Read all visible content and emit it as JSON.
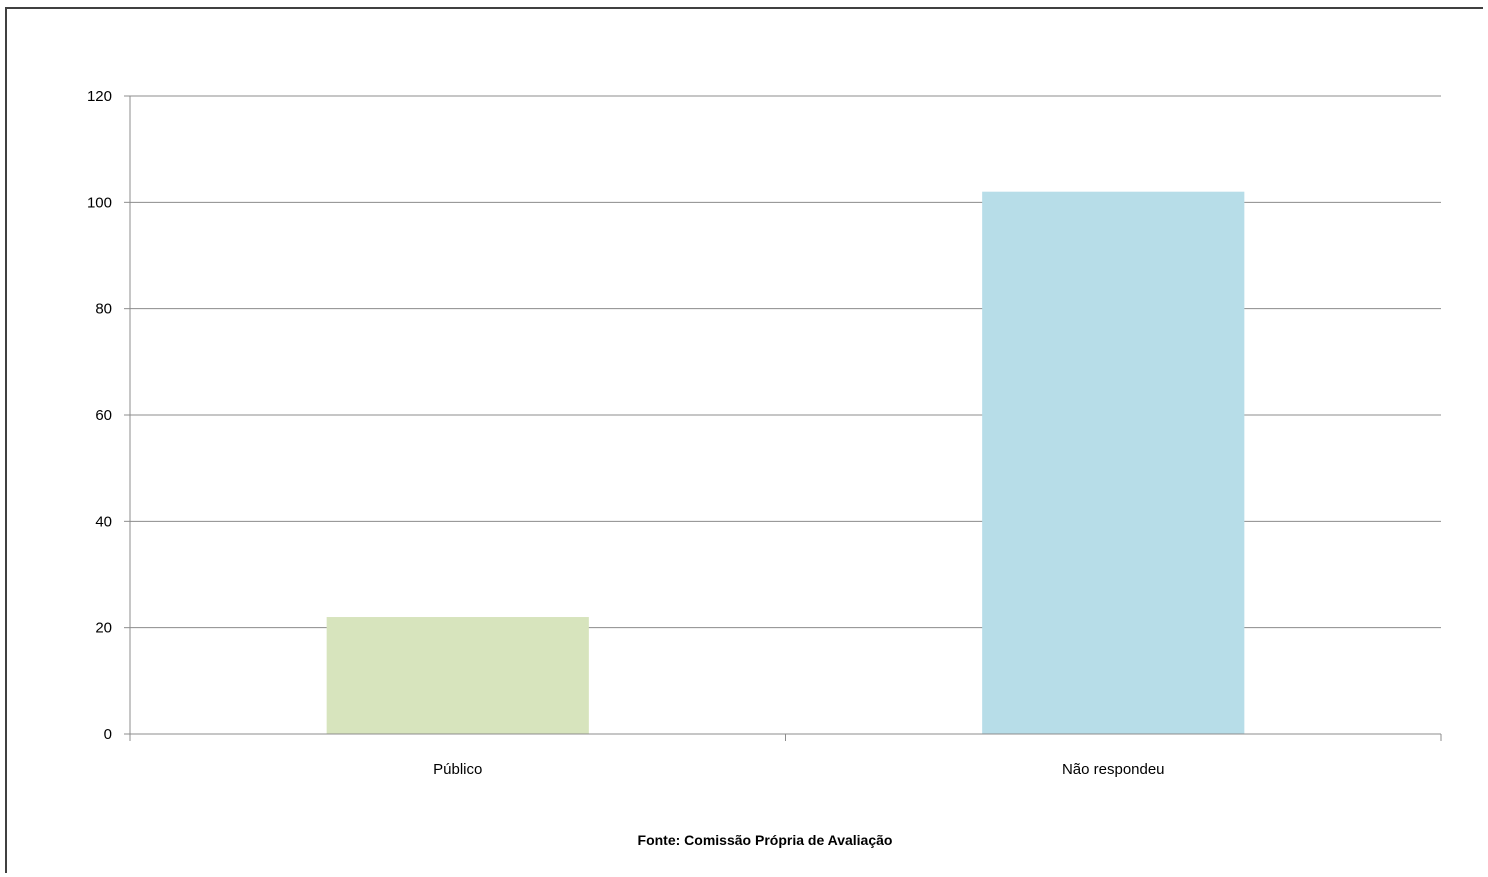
{
  "chart_data": {
    "type": "bar",
    "title": "",
    "xlabel": "",
    "ylabel": "",
    "categories": [
      "Público",
      "Não respondeu"
    ],
    "values": [
      22,
      102
    ],
    "bar_colors": [
      "#d7e4bd",
      "#b7dde8"
    ],
    "ylim": [
      0,
      120
    ],
    "yticks": [
      0,
      20,
      40,
      60,
      80,
      100,
      120
    ],
    "grid": true,
    "legend": "none",
    "source": "Fonte: Comissão Própria de Avaliação"
  },
  "colors": {
    "gridline": "#8c8c8c",
    "axis": "#8c8c8c",
    "frame": "#404040"
  }
}
